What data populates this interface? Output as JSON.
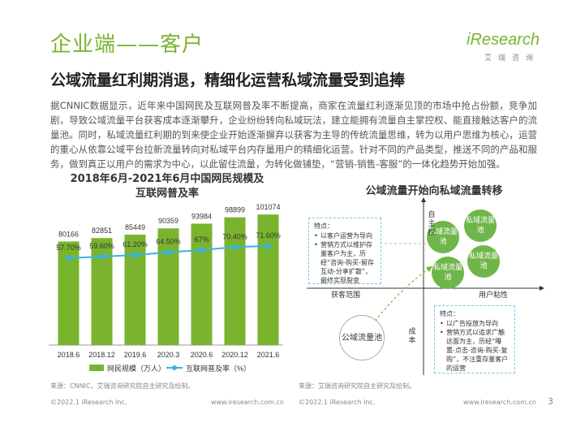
{
  "header": {
    "title": "企业端——客户",
    "logo_main": "iResearch",
    "logo_sub": "艾瑞咨询"
  },
  "subtitle": "公域流量红利期消退，精细化运营私域流量受到追捧",
  "paragraph": "据CNNIC数据显示，近年来中国网民及互联网普及率不断提高，商家在流量红利逐渐见顶的市场中抢占份额，竞争加剧，导致公域流量平台获客成本逐渐攀升，企业纷纷转向私域玩法，建立能拥有流量自主掌控权、能直接触达客户的流量池。同时，私域流量红利期的到来使企业开始逐渐摒弃以获客为主导的传统流量思维，转为以用户思维为核心，运营的重心从依靠公域平台拉新流量转向对私域平台内存量用户的精细化运营。针对不同的产品类型，推送不同的产品和服务，做到真正以用户的需求为中心，以此留住流量，为转化做铺垫，“营销-销售-客服”的一体化趋势开始加强。",
  "left": {
    "title_line1": "2018年6月-2021年6月中国网民规模及",
    "title_line2": "互联网普及率",
    "source": "来源：CNNIC，艾瑞咨询研究院自主研究及绘制。"
  },
  "chart_data": {
    "type": "bar",
    "title": "2018年6月-2021年6月中国网民规模及互联网普及率",
    "categories": [
      "2018.6",
      "2018.12",
      "2019.6",
      "2020.3",
      "2020.6",
      "2020.12",
      "2021.6"
    ],
    "series": [
      {
        "name": "网民规模（万人）",
        "type": "bar",
        "values": [
          80166,
          82851,
          85449,
          90359,
          93984,
          98899,
          101074
        ],
        "labels": [
          "80166",
          "82851",
          "85449",
          "90359",
          "93984",
          "98899",
          "101074"
        ],
        "color": "#7ab32e"
      },
      {
        "name": "互联网普及率（%）",
        "type": "line",
        "values": [
          57.7,
          59.6,
          61.2,
          64.5,
          67,
          70.4,
          71.6
        ],
        "labels": [
          "57.70%",
          "59.60%",
          "61.20%",
          "64.50%",
          "67%",
          "70.40%",
          "71.60%"
        ],
        "color": "#37b3e5"
      }
    ],
    "legend": "bottom",
    "grid": false
  },
  "right": {
    "title": "公域流量开始向私域流量转移",
    "source": "来源：艾瑞咨询研究院自主研究及绘制。",
    "box1": {
      "head": "特点：",
      "items": [
        "以客户运营为导向",
        "营销方式以维护存量客户为主，历经“咨询-购买-留存互动-分享扩散”，最终实现裂变"
      ]
    },
    "box2": {
      "head": "特点：",
      "items": [
        "以广告投放为导向",
        "营销方式以追求广触达面为主，历经“曝置-点击-咨询-购买-复购”，不注重存量客户的运营"
      ]
    },
    "private_pool": "私域流量池",
    "public_pool": "公域流量池",
    "axis_autonomy": "自主权",
    "axis_cost": "成本",
    "axis_reach": "获客范围",
    "axis_stickiness": "用户粘性"
  },
  "footer": {
    "left_copy": "©2022.1 iResearch Inc.",
    "left_url": "www.iresearch.com.cn",
    "right_copy": "©2022.1 iResearch Inc.",
    "right_url": "www.iresearch.com.cn",
    "page": "3"
  }
}
